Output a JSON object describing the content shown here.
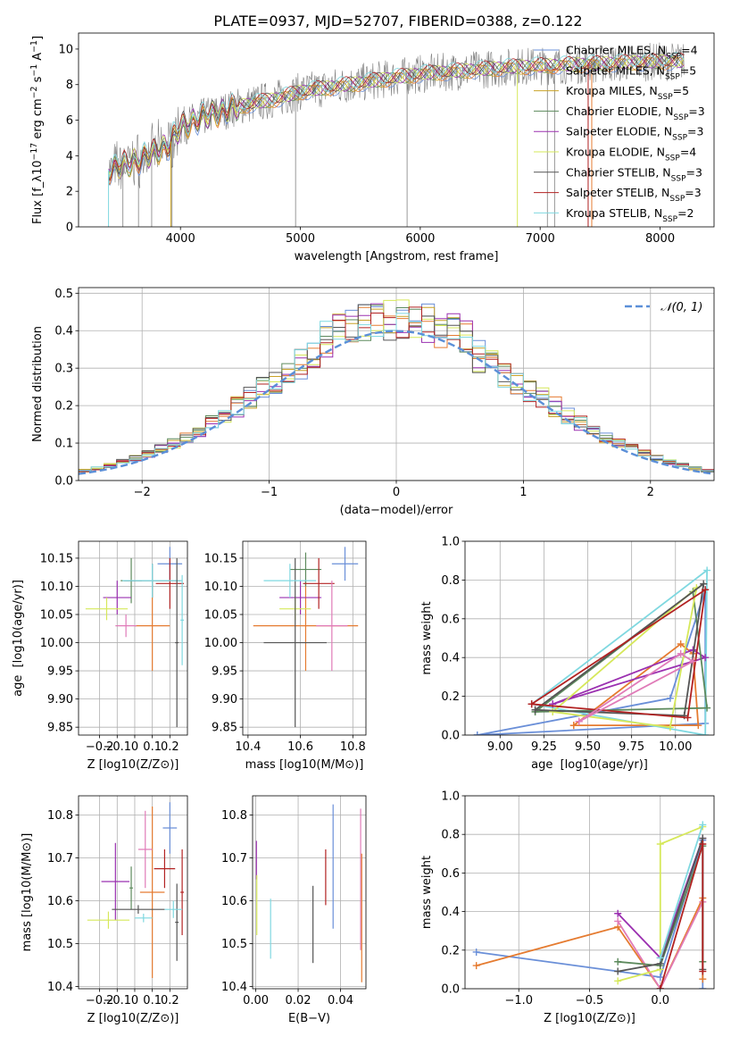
{
  "figure": {
    "title": "PLATE=0937, MJD=52707, FIBERID=0388, z=0.122"
  },
  "colors": {
    "chabrier_miles": "#6a8fd8",
    "salpeter_miles": "#e57b30",
    "kroupa_miles": "#c9a227",
    "chabrier_elodie": "#5d8a5d",
    "salpeter_elodie": "#9b30b0",
    "kroupa_elodie": "#d6e85a",
    "chabrier_stelib": "#555555",
    "salpeter_stelib": "#b22222",
    "kroupa_stelib": "#7fd8e0",
    "pink": "#e07bb8",
    "observed": "#808080",
    "normal_curve": "#5b8fd8"
  },
  "chart_data": [
    {
      "id": "spectrum",
      "type": "line",
      "xlabel": "wavelength [Angstrom, rest frame]",
      "ylabel": "Flux [f_λ10^-17 erg cm^-2 s^-1 A^-1]",
      "xlim": [
        3150,
        8450
      ],
      "ylim": [
        0,
        10.9
      ],
      "xticks": [
        4000,
        5000,
        6000,
        7000,
        8000
      ],
      "yticks": [
        0,
        2,
        4,
        6,
        8,
        10
      ],
      "grid": false,
      "legend_position": "right",
      "legend": [
        {
          "label": "Chabrier MILES, N_SSP=4",
          "color_key": "chabrier_miles"
        },
        {
          "label": "Salpeter MILES, N_SSP=5",
          "color_key": "salpeter_miles"
        },
        {
          "label": "Kroupa MILES, N_SSP=5",
          "color_key": "kroupa_miles"
        },
        {
          "label": "Chabrier ELODIE, N_SSP=3",
          "color_key": "chabrier_elodie"
        },
        {
          "label": "Salpeter ELODIE, N_SSP=3",
          "color_key": "salpeter_elodie"
        },
        {
          "label": "Kroupa ELODIE, N_SSP=4",
          "color_key": "kroupa_elodie"
        },
        {
          "label": "Chabrier STELIB, N_SSP=3",
          "color_key": "chabrier_stelib"
        },
        {
          "label": "Salpeter STELIB, N_SSP=3",
          "color_key": "salpeter_stelib"
        },
        {
          "label": "Kroupa STELIB, N_SSP=2",
          "color_key": "kroupa_stelib"
        }
      ],
      "continuum": {
        "x": [
          3400,
          3500,
          3700,
          3900,
          4000,
          4200,
          4500,
          4800,
          5000,
          5300,
          5600,
          6000,
          6400,
          6800,
          7200,
          7600,
          8000,
          8200
        ],
        "y": [
          3.2,
          3.4,
          3.9,
          4.6,
          5.6,
          6.2,
          6.8,
          7.2,
          7.6,
          7.9,
          8.2,
          8.6,
          8.8,
          9.0,
          9.1,
          9.2,
          9.3,
          9.3
        ]
      }
    },
    {
      "id": "residuals",
      "type": "histogram",
      "xlabel": "(data-model)/error",
      "ylabel": "Normed distribution",
      "xlim": [
        -2.5,
        2.5
      ],
      "ylim": [
        0,
        0.515
      ],
      "xticks": [
        -2,
        -1,
        0,
        1,
        2
      ],
      "yticks": [
        0.0,
        0.1,
        0.2,
        0.3,
        0.4,
        0.5
      ],
      "grid": true,
      "legend_position": "top-right",
      "legend": [
        {
          "label": "𝒩(0, 1)",
          "color_key": "normal_curve"
        }
      ],
      "bin_width": 0.1,
      "normal_curve": {
        "mean": 0,
        "sigma": 1
      }
    },
    {
      "id": "age_vs_Z",
      "type": "errorbar",
      "xlabel": "Z [log10(Z/Z⊙)]",
      "ylabel": "age  [log10(age/yr)]",
      "xlim": [
        -0.32,
        0.3
      ],
      "ylim": [
        9.836,
        10.18
      ],
      "xticks": [
        -0.2,
        -0.1,
        0.0,
        0.1,
        0.2
      ],
      "yticks": [
        9.85,
        9.9,
        9.95,
        10.0,
        10.05,
        10.1,
        10.15
      ],
      "grid": true,
      "points": [
        {
          "c": "chabrier_miles",
          "x": 0.2,
          "y": 10.14,
          "xerr": 0.07,
          "yerr": 0.03
        },
        {
          "c": "salpeter_miles",
          "x": 0.1,
          "y": 10.03,
          "xerr": 0.1,
          "yerr": 0.08
        },
        {
          "c": "chabrier_elodie",
          "x": -0.02,
          "y": 10.11,
          "xerr": 0.06,
          "yerr": 0.04
        },
        {
          "c": "salpeter_elodie",
          "x": -0.1,
          "y": 10.08,
          "xerr": 0.08,
          "yerr": 0.03
        },
        {
          "c": "kroupa_elodie",
          "x": -0.16,
          "y": 10.06,
          "xerr": 0.12,
          "yerr": 0.02
        },
        {
          "c": "chabrier_stelib",
          "x": 0.1,
          "y": 10.11,
          "xerr": 0.16,
          "yerr": 0.03
        },
        {
          "c": "salpeter_stelib",
          "x": 0.2,
          "y": 10.105,
          "xerr": 0.08,
          "yerr": 0.045
        },
        {
          "c": "kroupa_stelib",
          "x": 0.1,
          "y": 10.11,
          "xerr": 0.17,
          "yerr": 0.03
        },
        {
          "c": "pink",
          "x": -0.05,
          "y": 10.03,
          "xerr": 0.06,
          "yerr": 0.02
        },
        {
          "c": "chabrier_stelib",
          "x": 0.24,
          "y": 10.0,
          "xerr": 0.01,
          "yerr": 0.15
        },
        {
          "c": "kroupa_stelib",
          "x": 0.27,
          "y": 10.04,
          "xerr": 0.01,
          "yerr": 0.08
        }
      ]
    },
    {
      "id": "age_vs_mass",
      "type": "errorbar",
      "xlabel": "mass [log10(M/M⊙)]",
      "ylabel": "",
      "xlim": [
        10.38,
        10.85
      ],
      "ylim": [
        9.836,
        10.18
      ],
      "xticks": [
        10.4,
        10.6,
        10.8
      ],
      "yticks": [
        9.85,
        9.9,
        9.95,
        10.0,
        10.05,
        10.1,
        10.15
      ],
      "grid": true,
      "points": [
        {
          "c": "chabrier_miles",
          "x": 10.77,
          "y": 10.14,
          "xerr": 0.05,
          "yerr": 0.03
        },
        {
          "c": "salpeter_miles",
          "x": 10.62,
          "y": 10.03,
          "xerr": 0.2,
          "yerr": 0.08
        },
        {
          "c": "chabrier_elodie",
          "x": 10.62,
          "y": 10.13,
          "xerr": 0.06,
          "yerr": 0.03
        },
        {
          "c": "salpeter_elodie",
          "x": 10.6,
          "y": 10.08,
          "xerr": 0.08,
          "yerr": 0.03
        },
        {
          "c": "kroupa_elodie",
          "x": 10.58,
          "y": 10.06,
          "xerr": 0.06,
          "yerr": 0.02
        },
        {
          "c": "chabrier_stelib",
          "x": 10.58,
          "y": 10.0,
          "xerr": 0.12,
          "yerr": 0.15
        },
        {
          "c": "salpeter_stelib",
          "x": 10.67,
          "y": 10.105,
          "xerr": 0.06,
          "yerr": 0.045
        },
        {
          "c": "kroupa_stelib",
          "x": 10.56,
          "y": 10.11,
          "xerr": 0.1,
          "yerr": 0.03
        },
        {
          "c": "pink",
          "x": 10.72,
          "y": 10.03,
          "xerr": 0.06,
          "yerr": 0.08
        }
      ]
    },
    {
      "id": "weight_vs_age",
      "type": "line",
      "xlabel": "age  [log10(age/yr)]",
      "ylabel": "mass weight",
      "xlim": [
        8.8,
        10.22
      ],
      "ylim": [
        0,
        1.0
      ],
      "xticks": [
        9.0,
        9.25,
        9.5,
        9.75,
        10.0
      ],
      "xticklabels": [
        "9.00",
        "9.25",
        "9.50",
        "9.75",
        "10.00"
      ],
      "yticks": [
        0.0,
        0.2,
        0.4,
        0.6,
        0.8,
        1.0
      ],
      "grid": true,
      "series": [
        {
          "c": "chabrier_miles",
          "x": [
            8.87,
            9.97,
            10.17,
            10.17,
            8.87
          ],
          "y": [
            0.0,
            0.19,
            0.75,
            0.06,
            0.0
          ]
        },
        {
          "c": "salpeter_miles",
          "x": [
            9.42,
            10.03,
            10.1,
            10.13,
            9.42
          ],
          "y": [
            0.05,
            0.47,
            0.42,
            0.05,
            0.05
          ]
        },
        {
          "c": "kroupa_stelib",
          "x": [
            9.18,
            10.18,
            10.17,
            9.18
          ],
          "y": [
            0.16,
            0.85,
            0.0,
            0.16
          ]
        },
        {
          "c": "salpeter_elodie",
          "x": [
            9.3,
            10.1,
            10.17,
            9.3
          ],
          "y": [
            0.16,
            0.44,
            0.4,
            0.16
          ]
        },
        {
          "c": "chabrier_elodie",
          "x": [
            9.2,
            10.1,
            10.18,
            9.2
          ],
          "y": [
            0.12,
            0.74,
            0.14,
            0.12
          ]
        },
        {
          "c": "kroupa_elodie",
          "x": [
            9.3,
            10.12,
            9.97,
            9.3
          ],
          "y": [
            0.12,
            0.76,
            0.04,
            0.12
          ]
        },
        {
          "c": "chabrier_stelib",
          "x": [
            9.2,
            10.16,
            10.05,
            9.2
          ],
          "y": [
            0.13,
            0.78,
            0.1,
            0.13
          ]
        },
        {
          "c": "salpeter_stelib",
          "x": [
            9.18,
            10.17,
            10.07,
            9.18
          ],
          "y": [
            0.16,
            0.75,
            0.09,
            0.16
          ]
        },
        {
          "c": "pink",
          "x": [
            9.45,
            10.1,
            10.03,
            9.45
          ],
          "y": [
            0.07,
            0.38,
            0.42,
            0.07
          ]
        }
      ]
    },
    {
      "id": "mass_vs_Z",
      "type": "errorbar",
      "xlabel": "Z [log10(Z/Z⊙)]",
      "ylabel": "mass [log10(M/M⊙)]",
      "xlim": [
        -0.32,
        0.3
      ],
      "ylim": [
        10.395,
        10.845
      ],
      "xticks": [
        -0.2,
        -0.1,
        0.0,
        0.1,
        0.2
      ],
      "yticks": [
        10.4,
        10.5,
        10.6,
        10.7,
        10.8
      ],
      "grid": true,
      "points": [
        {
          "c": "chabrier_miles",
          "x": 0.2,
          "y": 10.77,
          "xerr": 0.04,
          "yerr": 0.06
        },
        {
          "c": "salpeter_miles",
          "x": 0.1,
          "y": 10.62,
          "xerr": 0.07,
          "yerr": 0.2
        },
        {
          "c": "chabrier_elodie",
          "x": -0.02,
          "y": 10.63,
          "xerr": 0.01,
          "yerr": 0.05
        },
        {
          "c": "salpeter_elodie",
          "x": -0.11,
          "y": 10.645,
          "xerr": 0.08,
          "yerr": 0.09
        },
        {
          "c": "kroupa_elodie",
          "x": -0.15,
          "y": 10.555,
          "xerr": 0.12,
          "yerr": 0.02
        },
        {
          "c": "chabrier_stelib",
          "x": 0.02,
          "y": 10.58,
          "xerr": 0.15,
          "yerr": 0.01
        },
        {
          "c": "salpeter_stelib",
          "x": 0.17,
          "y": 10.675,
          "xerr": 0.06,
          "yerr": 0.045
        },
        {
          "c": "kroupa_stelib",
          "x": 0.05,
          "y": 10.56,
          "xerr": 0.05,
          "yerr": 0.01
        },
        {
          "c": "pink",
          "x": 0.06,
          "y": 10.72,
          "xerr": 0.04,
          "yerr": 0.09
        },
        {
          "c": "chabrier_stelib",
          "x": 0.24,
          "y": 10.55,
          "xerr": 0.01,
          "yerr": 0.09
        },
        {
          "c": "salpeter_stelib",
          "x": 0.27,
          "y": 10.62,
          "xerr": 0.01,
          "yerr": 0.1
        },
        {
          "c": "kroupa_stelib",
          "x": 0.22,
          "y": 10.58,
          "xerr": 0.05,
          "yerr": 0.02
        }
      ]
    },
    {
      "id": "mass_vs_EBV",
      "type": "errorbar",
      "xlabel": "E(B-V)",
      "ylabel": "",
      "xlim": [
        -0.0015,
        0.052
      ],
      "ylim": [
        10.395,
        10.845
      ],
      "xticks": [
        0.0,
        0.02,
        0.04
      ],
      "xticklabels": [
        "0.00",
        "0.02",
        "0.04"
      ],
      "yticks": [
        10.4,
        10.5,
        10.6,
        10.7,
        10.8
      ],
      "grid": true,
      "points": [
        {
          "c": "salpeter_elodie",
          "x": 0.0003,
          "y": 10.695,
          "xerr": 0,
          "yerr": 0.045
        },
        {
          "c": "kroupa_elodie",
          "x": 0.0005,
          "y": 10.59,
          "xerr": 0,
          "yerr": 0.07
        },
        {
          "c": "kroupa_stelib",
          "x": 0.007,
          "y": 10.535,
          "xerr": 0,
          "yerr": 0.07
        },
        {
          "c": "chabrier_stelib",
          "x": 0.027,
          "y": 10.545,
          "xerr": 0,
          "yerr": 0.09
        },
        {
          "c": "salpeter_stelib",
          "x": 0.033,
          "y": 10.655,
          "xerr": 0,
          "yerr": 0.065
        },
        {
          "c": "chabrier_miles",
          "x": 0.0365,
          "y": 10.68,
          "xerr": 0,
          "yerr": 0.145
        },
        {
          "c": "pink",
          "x": 0.0495,
          "y": 10.65,
          "xerr": 0,
          "yerr": 0.165
        },
        {
          "c": "salpeter_miles",
          "x": 0.05,
          "y": 10.56,
          "xerr": 0,
          "yerr": 0.15
        }
      ]
    },
    {
      "id": "weight_vs_Z",
      "type": "line",
      "xlabel": "Z [log10(Z/Z⊙)]",
      "ylabel": "mass weight",
      "xlim": [
        -1.38,
        0.38
      ],
      "ylim": [
        0,
        1.0
      ],
      "xticks": [
        -1.0,
        -0.5,
        0.0
      ],
      "xticklabels": [
        "−1.0",
        "−0.5",
        "0.0"
      ],
      "yticks": [
        0.0,
        0.2,
        0.4,
        0.6,
        0.8,
        1.0
      ],
      "grid": true,
      "series": [
        {
          "c": "chabrier_miles",
          "x": [
            -1.3,
            0.0,
            0.3,
            0.3
          ],
          "y": [
            0.19,
            0.06,
            0.77,
            0.0
          ]
        },
        {
          "c": "salpeter_miles",
          "x": [
            -1.3,
            -0.3,
            0.0,
            0.3,
            0.3
          ],
          "y": [
            0.12,
            0.32,
            0.0,
            0.47,
            0.05
          ]
        },
        {
          "c": "pink",
          "x": [
            -0.3,
            0.0,
            0.3
          ],
          "y": [
            0.35,
            0.0,
            0.45
          ]
        },
        {
          "c": "salpeter_elodie",
          "x": [
            -0.3,
            0.0,
            0.3
          ],
          "y": [
            0.39,
            0.16,
            0.78
          ]
        },
        {
          "c": "kroupa_elodie",
          "x": [
            -0.3,
            0.0,
            0.0,
            0.3
          ],
          "y": [
            0.04,
            0.1,
            0.75,
            0.84
          ]
        },
        {
          "c": "chabrier_elodie",
          "x": [
            -0.3,
            0.0,
            0.3,
            0.3
          ],
          "y": [
            0.14,
            0.12,
            0.74,
            0.14
          ]
        },
        {
          "c": "chabrier_stelib",
          "x": [
            -0.3,
            0.0,
            0.3,
            0.3
          ],
          "y": [
            0.09,
            0.13,
            0.78,
            0.1
          ]
        },
        {
          "c": "salpeter_stelib",
          "x": [
            0.0,
            0.3,
            0.3
          ],
          "y": [
            0.0,
            0.75,
            0.09
          ]
        },
        {
          "c": "kroupa_stelib",
          "x": [
            0.0,
            0.3
          ],
          "y": [
            0.16,
            0.85
          ]
        }
      ]
    }
  ]
}
